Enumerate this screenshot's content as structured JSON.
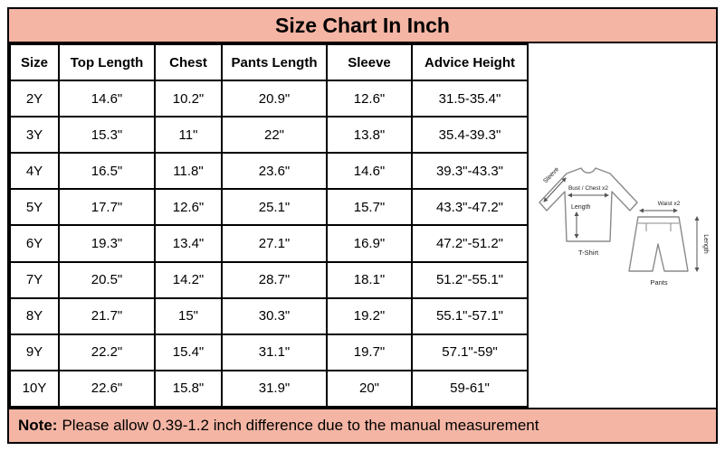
{
  "chart_data": {
    "type": "table",
    "title": "Size Chart In Inch",
    "columns": [
      "Size",
      "Top Length",
      "Chest",
      "Pants Length",
      "Sleeve",
      "Advice Height"
    ],
    "rows": [
      [
        "2Y",
        "14.6\"",
        "10.2\"",
        "20.9\"",
        "12.6\"",
        "31.5-35.4\""
      ],
      [
        "3Y",
        "15.3\"",
        "11\"",
        "22\"",
        "13.8\"",
        "35.4-39.3\""
      ],
      [
        "4Y",
        "16.5\"",
        "11.8\"",
        "23.6\"",
        "14.6\"",
        "39.3\"-43.3\""
      ],
      [
        "5Y",
        "17.7\"",
        "12.6\"",
        "25.1\"",
        "15.7\"",
        "43.3\"-47.2\""
      ],
      [
        "6Y",
        "19.3\"",
        "13.4\"",
        "27.1\"",
        "16.9\"",
        "47.2\"-51.2\""
      ],
      [
        "7Y",
        "20.5\"",
        "14.2\"",
        "28.7\"",
        "18.1\"",
        "51.2\"-55.1\""
      ],
      [
        "8Y",
        "21.7\"",
        "15\"",
        "30.3\"",
        "19.2\"",
        "55.1\"-57.1\""
      ],
      [
        "9Y",
        "22.2\"",
        "15.4\"",
        "31.1\"",
        "19.7\"",
        "57.1\"-59\""
      ],
      [
        "10Y",
        "22.6\"",
        "15.8\"",
        "31.9\"",
        "20\"",
        "59-61\""
      ]
    ]
  },
  "note": {
    "label": "Note:",
    "text": "Please allow 0.39-1.2 inch difference due to the manual measurement"
  },
  "diagram": {
    "sleeve": "Sleeve",
    "bust": "Bust / Chest x2",
    "waist": "Waist x2",
    "length_shirt": "Length",
    "length_pants": "Length",
    "tshirt": "T-Shirt",
    "pants": "Pants"
  },
  "colors": {
    "accent": "#f4b5a4",
    "border": "#000000"
  }
}
